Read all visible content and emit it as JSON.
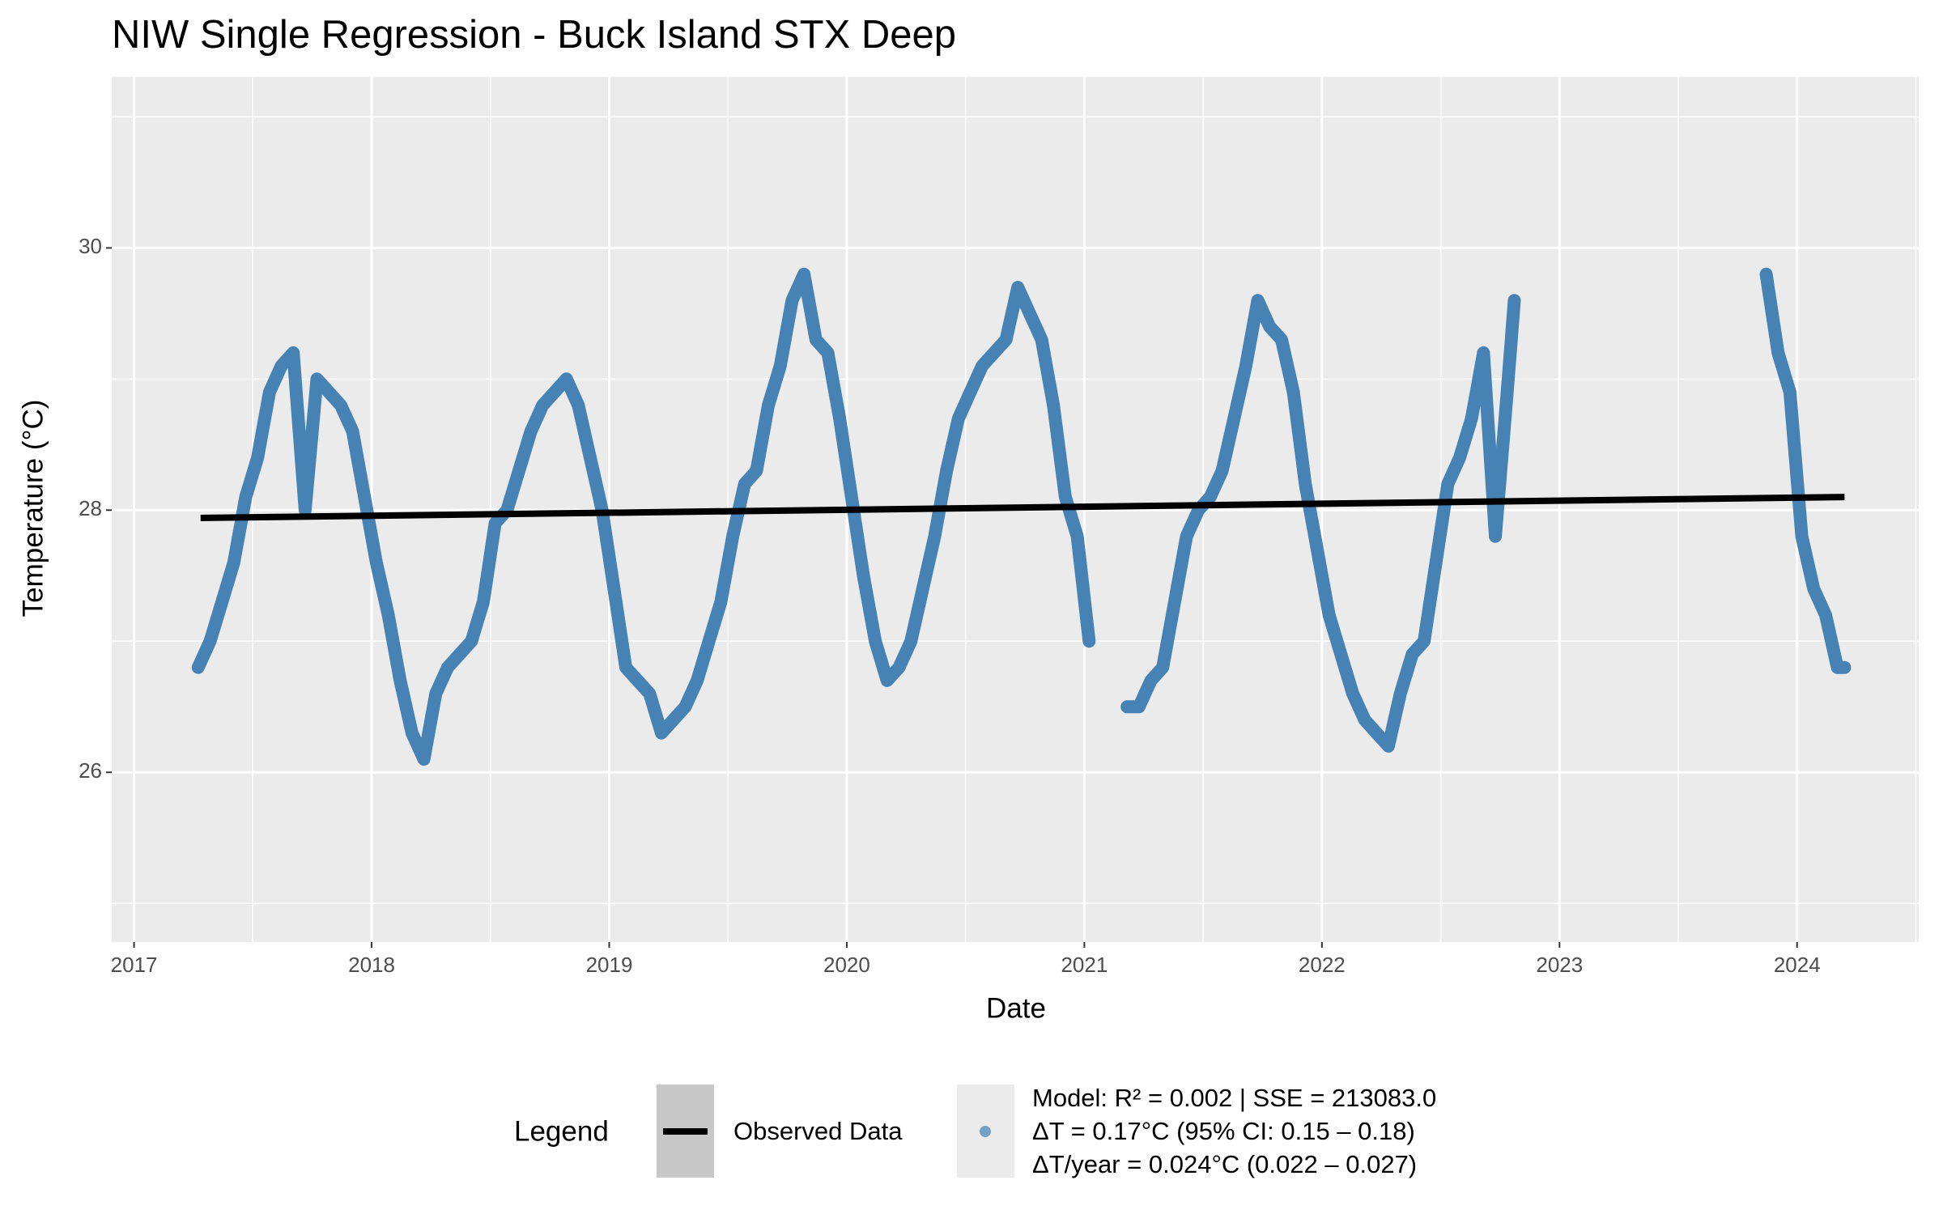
{
  "chart_data": {
    "type": "line",
    "title": "NIW Single Regression - Buck Island STX Deep",
    "x_label": "Date",
    "y_label": "Temperature (°C)",
    "xlim": [
      2016.906,
      2024.512
    ],
    "ylim": [
      24.705,
      31.305
    ],
    "xticks": [
      2017,
      2018,
      2019,
      2020,
      2021,
      2022,
      2023,
      2024
    ],
    "yticks": [
      26,
      28,
      30
    ],
    "x_minor_ticks": [
      2017.5,
      2018.5,
      2019.5,
      2020.5,
      2021.5,
      2022.5,
      2023.5,
      2024.5
    ],
    "y_minor_ticks": [
      25,
      27,
      29,
      31
    ],
    "grid": true,
    "legend": {
      "title": "Legend",
      "position": "bottom",
      "entries": [
        {
          "label": "Observed Data",
          "key": "line",
          "color": "#000000"
        },
        {
          "label_lines": [
            "Model: R² = 0.002 | SSE = 213083.0",
            "ΔT = 0.17°C (95% CI: 0.15 – 0.18)",
            "ΔT/year = 0.024°C (0.022 – 0.027)"
          ],
          "key": "point",
          "color": "#4682b4"
        }
      ]
    },
    "series": [
      {
        "color": "#4682b4",
        "style": "thick",
        "x": [
          2017.27,
          2017.32,
          2017.37,
          2017.42,
          2017.47,
          2017.52,
          2017.57,
          2017.62,
          2017.67,
          2017.72,
          2017.77,
          2017.82,
          2017.87,
          2017.92,
          2017.97,
          2018.02,
          2018.07,
          2018.12,
          2018.17,
          2018.22,
          2018.27,
          2018.32,
          2018.37,
          2018.42,
          2018.47,
          2018.52,
          2018.57,
          2018.62,
          2018.67,
          2018.72,
          2018.77,
          2018.82,
          2018.87,
          2018.92,
          2018.97,
          2019.02,
          2019.07,
          2019.12,
          2019.17,
          2019.22,
          2019.27,
          2019.32,
          2019.37,
          2019.42,
          2019.47,
          2019.52,
          2019.57,
          2019.62,
          2019.67,
          2019.72,
          2019.77,
          2019.82,
          2019.87,
          2019.92,
          2019.97,
          2020.02,
          2020.07,
          2020.12,
          2020.17,
          2020.22,
          2020.27,
          2020.32,
          2020.37,
          2020.42,
          2020.47,
          2020.52,
          2020.57,
          2020.62,
          2020.67,
          2020.72,
          2020.77,
          2020.82,
          2020.87,
          2020.92,
          2020.97,
          2021.02,
          2021.1,
          2021.18,
          2021.23,
          2021.28,
          2021.33,
          2021.38,
          2021.43,
          2021.48,
          2021.53,
          2021.58,
          2021.63,
          2021.68,
          2021.73,
          2021.78,
          2021.83,
          2021.88,
          2021.93,
          2021.98,
          2022.03,
          2022.08,
          2022.13,
          2022.18,
          2022.23,
          2022.28,
          2022.33,
          2022.38,
          2022.43,
          2022.48,
          2022.53,
          2022.58,
          2022.63,
          2022.68,
          2022.73,
          2022.78,
          2022.81,
          2023.3,
          2023.87,
          2023.92,
          2023.97,
          2024.02,
          2024.07,
          2024.12,
          2024.17,
          2024.2
        ],
        "values": [
          26.8,
          27.0,
          27.3,
          27.6,
          28.1,
          28.4,
          28.9,
          29.1,
          29.2,
          28.0,
          29.0,
          28.9,
          28.8,
          28.6,
          28.1,
          27.6,
          27.2,
          26.7,
          26.3,
          26.1,
          26.6,
          26.8,
          26.9,
          27.0,
          27.3,
          27.9,
          28.0,
          28.3,
          28.6,
          28.8,
          28.9,
          29.0,
          28.8,
          28.4,
          28.0,
          27.4,
          26.8,
          26.7,
          26.6,
          26.3,
          26.4,
          26.5,
          26.7,
          27.0,
          27.3,
          27.8,
          28.2,
          28.3,
          28.8,
          29.1,
          29.6,
          29.8,
          29.3,
          29.2,
          28.7,
          28.1,
          27.5,
          27.0,
          26.7,
          26.8,
          27.0,
          27.4,
          27.8,
          28.3,
          28.7,
          28.9,
          29.1,
          29.2,
          29.3,
          29.7,
          29.5,
          29.3,
          28.8,
          28.1,
          27.8,
          27.0,
          null,
          26.5,
          26.5,
          26.7,
          26.8,
          27.3,
          27.8,
          28.0,
          28.1,
          28.3,
          28.7,
          29.1,
          29.6,
          29.4,
          29.3,
          28.9,
          28.2,
          27.7,
          27.2,
          26.9,
          26.6,
          26.4,
          26.3,
          26.2,
          26.6,
          26.9,
          27.0,
          27.6,
          28.2,
          28.4,
          28.7,
          29.2,
          27.8,
          28.9,
          29.6,
          null,
          29.8,
          29.2,
          28.9,
          27.8,
          27.4,
          27.2,
          26.8,
          26.8
        ]
      },
      {
        "color": "#000000",
        "style": "regression",
        "x": [
          2017.28,
          2024.2
        ],
        "values": [
          27.94,
          28.1
        ]
      }
    ]
  }
}
